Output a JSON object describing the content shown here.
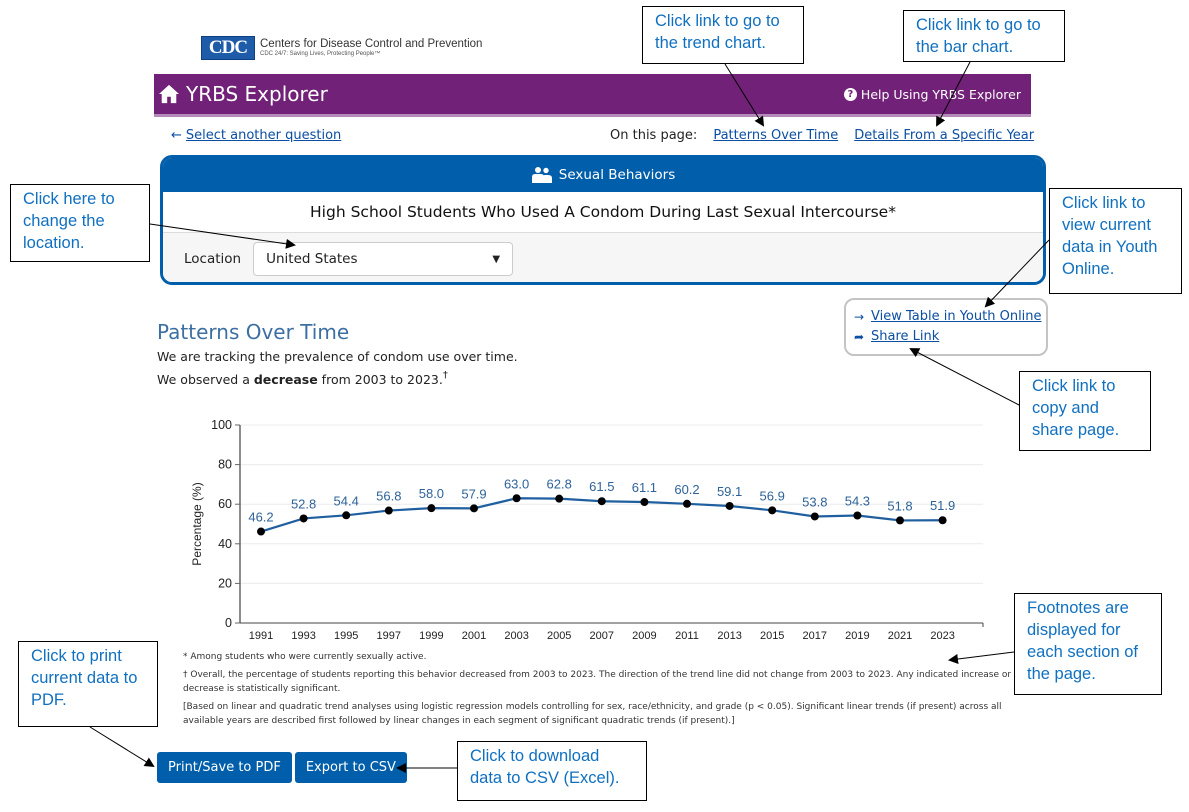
{
  "logo": {
    "badge": "CDC",
    "org_name": "Centers for Disease Control and Prevention",
    "tagline": "CDC 24/7: Saving Lives, Protecting People™"
  },
  "header": {
    "title": "YRBS Explorer",
    "home_icon": "home-icon",
    "help_label": "Help Using YRBS Explorer",
    "help_icon": "question-circle-icon",
    "colors": {
      "bar": "#712177",
      "accent": "#005eaa"
    }
  },
  "nav": {
    "back_label": "Select another question",
    "back_icon": "←",
    "on_this_page_label": "On this page:",
    "links": [
      "Patterns Over Time",
      "Details From a Specific Year"
    ]
  },
  "question": {
    "topic": "Sexual Behaviors",
    "topic_icon": "people-icon",
    "title": "High School Students Who Used A Condom During Last Sexual Intercourse*",
    "location_label": "Location",
    "location_value": "United States"
  },
  "resources": {
    "youth_online_label": "View Table in Youth Online",
    "youth_online_icon": "→",
    "share_label": "Share Link",
    "share_icon": "➦"
  },
  "section": {
    "title": "Patterns Over Time",
    "line1": "We are tracking the prevalence of condom use over time.",
    "line2_pre": "We observed a ",
    "line2_bold": "decrease",
    "line2_post": " from 2003 to 2023.",
    "line2_sup": "†"
  },
  "chart_data": {
    "type": "line",
    "title": "",
    "xlabel": "",
    "ylabel": "Percentage (%)",
    "ylim": [
      0,
      100
    ],
    "yticks": [
      0,
      20,
      40,
      60,
      80,
      100
    ],
    "grid": true,
    "categories": [
      "1991",
      "1993",
      "1995",
      "1997",
      "1999",
      "2001",
      "2003",
      "2005",
      "2007",
      "2009",
      "2011",
      "2013",
      "2015",
      "2017",
      "2019",
      "2021",
      "2023"
    ],
    "series": [
      {
        "name": "United States",
        "values": [
          46.2,
          52.8,
          54.4,
          56.8,
          58.0,
          57.9,
          63.0,
          62.8,
          61.5,
          61.1,
          60.2,
          59.1,
          56.9,
          53.8,
          54.3,
          51.8,
          51.9
        ],
        "labels": [
          "46.2",
          "52.8",
          "54.4",
          "56.8",
          "58.0",
          "57.9",
          "63.0",
          "62.8",
          "61.5",
          "61.1",
          "60.2",
          "59.1",
          "56.9",
          "53.8",
          "54.3",
          "51.8",
          "51.9"
        ],
        "line_color": "#1f5fa0",
        "marker_color": "#000000",
        "label_color": "#2e6399"
      }
    ]
  },
  "footnotes": [
    "* Among students who were currently sexually active.",
    "† Overall, the percentage of students reporting this behavior decreased from 2003 to 2023. The direction of the trend line did not change from 2003 to 2023. Any indicated increase or decrease is statistically significant.",
    "[Based on linear and quadratic trend analyses using logistic regression models controlling for sex, race/ethnicity, and grade (p < 0.05). Significant linear trends (if present) across all available years are described first followed by linear changes in each segment of significant quadratic trends (if present).]"
  ],
  "buttons": {
    "print": "Print/Save to PDF",
    "export": "Export to CSV"
  },
  "callouts": {
    "trend": "Click link to go to the trend chart.",
    "bar": "Click link to go to the bar chart.",
    "location": "Click here to change the location.",
    "youth_online": "Click link to view current data in Youth Online.",
    "share": "Click link to copy and share page.",
    "footnotes": "Footnotes are displayed for each section of the page.",
    "print": "Click to print current data to PDF.",
    "csv": "Click to download data to CSV (Excel)."
  }
}
